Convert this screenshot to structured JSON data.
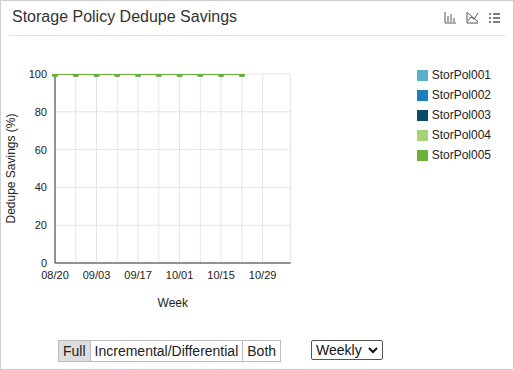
{
  "chart_data": {
    "type": "line",
    "title": "Storage Policy Dedupe Savings",
    "x_label": "Week",
    "y_label": "Dedupe Savings (%)",
    "categories": [
      "08/20",
      null,
      "09/03",
      null,
      "09/17",
      null,
      "10/01",
      null,
      "10/15",
      null,
      "10/29"
    ],
    "series": [
      {
        "name": "StorPol001",
        "color": "#58b0c9",
        "values": [
          100,
          100,
          100,
          100,
          100,
          100,
          100,
          100,
          100,
          100,
          null
        ]
      },
      {
        "name": "StorPol002",
        "color": "#1b7ebd",
        "values": [
          100,
          100,
          100,
          100,
          100,
          100,
          100,
          100,
          100,
          100,
          null
        ]
      },
      {
        "name": "StorPol003",
        "color": "#0b4d68",
        "values": [
          100,
          100,
          100,
          100,
          100,
          100,
          100,
          100,
          100,
          100,
          null
        ]
      },
      {
        "name": "StorPol004",
        "color": "#a8d374",
        "values": [
          100,
          100,
          100,
          100,
          100,
          100,
          100,
          100,
          100,
          100,
          null
        ]
      },
      {
        "name": "StorPol005",
        "color": "#6bb03a",
        "values": [
          100,
          100,
          100,
          100,
          100,
          100,
          100,
          100,
          100,
          100,
          null
        ]
      }
    ],
    "ylim": [
      0,
      100
    ],
    "yticks": [
      0,
      20,
      40,
      60,
      80,
      100
    ],
    "grid": true,
    "legend": "right",
    "marker": "circle"
  },
  "controls": {
    "buttons": [
      "Full",
      "Incremental/Differential",
      "Both"
    ],
    "selected": "Full",
    "select": "Weekly"
  }
}
